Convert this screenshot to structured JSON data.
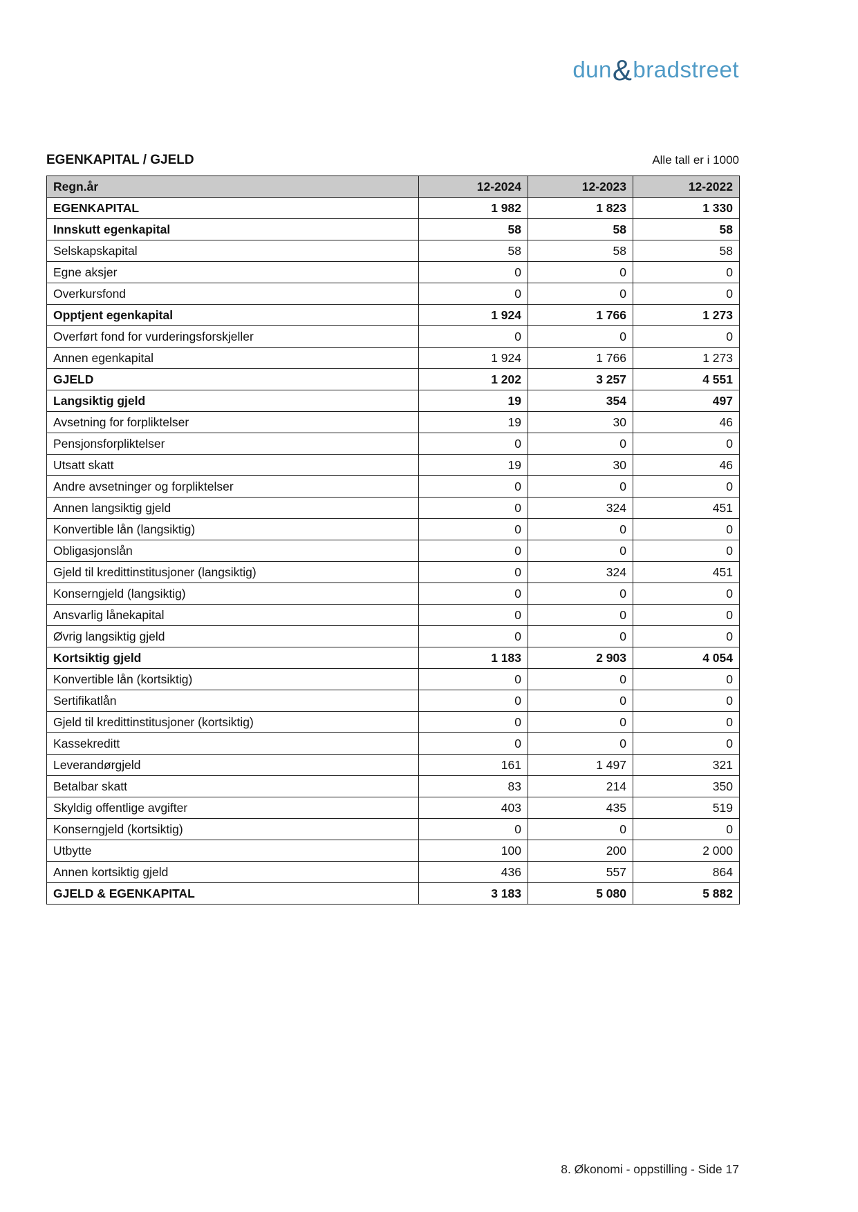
{
  "logo": {
    "part1": "dun",
    "amp": "&",
    "part2": "bradstreet",
    "text_color": "#4e9ac6",
    "amp_color": "#2a5a7e"
  },
  "header": {
    "title": "EGENKAPITAL / GJELD",
    "note": "Alle tall er i 1000"
  },
  "table": {
    "header": {
      "label": "Regn.år",
      "columns": [
        "12-2024",
        "12-2023",
        "12-2022"
      ]
    },
    "rows": [
      {
        "label": "EGENKAPITAL",
        "values": [
          "1 982",
          "1 823",
          "1 330"
        ],
        "bold": true
      },
      {
        "label": "Innskutt egenkapital",
        "values": [
          "58",
          "58",
          "58"
        ],
        "bold": true
      },
      {
        "label": "Selskapskapital",
        "values": [
          "58",
          "58",
          "58"
        ],
        "bold": false
      },
      {
        "label": "Egne aksjer",
        "values": [
          "0",
          "0",
          "0"
        ],
        "bold": false
      },
      {
        "label": "Overkursfond",
        "values": [
          "0",
          "0",
          "0"
        ],
        "bold": false
      },
      {
        "label": "Opptjent egenkapital",
        "values": [
          "1 924",
          "1 766",
          "1 273"
        ],
        "bold": true
      },
      {
        "label": "Overført fond for vurderingsforskjeller",
        "values": [
          "0",
          "0",
          "0"
        ],
        "bold": false
      },
      {
        "label": "Annen egenkapital",
        "values": [
          "1 924",
          "1 766",
          "1 273"
        ],
        "bold": false
      },
      {
        "label": "GJELD",
        "values": [
          "1 202",
          "3 257",
          "4 551"
        ],
        "bold": true
      },
      {
        "label": "Langsiktig gjeld",
        "values": [
          "19",
          "354",
          "497"
        ],
        "bold": true
      },
      {
        "label": "Avsetning for forpliktelser",
        "values": [
          "19",
          "30",
          "46"
        ],
        "bold": false
      },
      {
        "label": "Pensjonsforpliktelser",
        "values": [
          "0",
          "0",
          "0"
        ],
        "bold": false
      },
      {
        "label": "Utsatt skatt",
        "values": [
          "19",
          "30",
          "46"
        ],
        "bold": false
      },
      {
        "label": "Andre avsetninger og forpliktelser",
        "values": [
          "0",
          "0",
          "0"
        ],
        "bold": false
      },
      {
        "label": "Annen langsiktig gjeld",
        "values": [
          "0",
          "324",
          "451"
        ],
        "bold": false
      },
      {
        "label": "Konvertible lån (langsiktig)",
        "values": [
          "0",
          "0",
          "0"
        ],
        "bold": false
      },
      {
        "label": "Obligasjonslån",
        "values": [
          "0",
          "0",
          "0"
        ],
        "bold": false
      },
      {
        "label": "Gjeld til kredittinstitusjoner (langsiktig)",
        "values": [
          "0",
          "324",
          "451"
        ],
        "bold": false
      },
      {
        "label": "Konserngjeld (langsiktig)",
        "values": [
          "0",
          "0",
          "0"
        ],
        "bold": false
      },
      {
        "label": "Ansvarlig lånekapital",
        "values": [
          "0",
          "0",
          "0"
        ],
        "bold": false
      },
      {
        "label": "Øvrig langsiktig gjeld",
        "values": [
          "0",
          "0",
          "0"
        ],
        "bold": false
      },
      {
        "label": "Kortsiktig gjeld",
        "values": [
          "1 183",
          "2 903",
          "4 054"
        ],
        "bold": true
      },
      {
        "label": "Konvertible lån (kortsiktig)",
        "values": [
          "0",
          "0",
          "0"
        ],
        "bold": false
      },
      {
        "label": "Sertifikatlån",
        "values": [
          "0",
          "0",
          "0"
        ],
        "bold": false
      },
      {
        "label": "Gjeld til kredittinstitusjoner (kortsiktig)",
        "values": [
          "0",
          "0",
          "0"
        ],
        "bold": false
      },
      {
        "label": "Kassekreditt",
        "values": [
          "0",
          "0",
          "0"
        ],
        "bold": false
      },
      {
        "label": "Leverandørgjeld",
        "values": [
          "161",
          "1 497",
          "321"
        ],
        "bold": false
      },
      {
        "label": "Betalbar skatt",
        "values": [
          "83",
          "214",
          "350"
        ],
        "bold": false
      },
      {
        "label": "Skyldig offentlige avgifter",
        "values": [
          "403",
          "435",
          "519"
        ],
        "bold": false
      },
      {
        "label": "Konserngjeld (kortsiktig)",
        "values": [
          "0",
          "0",
          "0"
        ],
        "bold": false
      },
      {
        "label": "Utbytte",
        "values": [
          "100",
          "200",
          "2 000"
        ],
        "bold": false
      },
      {
        "label": "Annen kortsiktig gjeld",
        "values": [
          "436",
          "557",
          "864"
        ],
        "bold": false
      },
      {
        "label": "GJELD & EGENKAPITAL",
        "values": [
          "3 183",
          "5 080",
          "5 882"
        ],
        "bold": true
      }
    ]
  },
  "footer": {
    "page_info": "8. Økonomi - oppstilling - Side 17"
  }
}
